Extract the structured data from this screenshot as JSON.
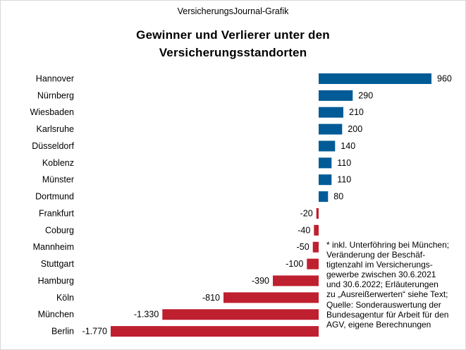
{
  "chart_data": {
    "type": "bar",
    "orientation": "horizontal",
    "source_label": "VersicherungsJournal-Grafik",
    "title": "Gewinner und Verlierer unter den Versicherungsstandorten",
    "title_lines": [
      "Gewinner und Verlierer unter den",
      "Versicherungsstandorten"
    ],
    "categories": [
      "Hannover",
      "Nürnberg",
      "Wiesbaden",
      "Karlsruhe",
      "Düsseldorf",
      "Koblenz",
      "Münster",
      "Dortmund",
      "Frankfurt",
      "Coburg",
      "Mannheim",
      "Stuttgart",
      "Hamburg",
      "Köln",
      "München",
      "Berlin"
    ],
    "values": [
      960,
      290,
      210,
      200,
      140,
      110,
      110,
      80,
      -20,
      -40,
      -50,
      -100,
      -390,
      -810,
      -1330,
      -1770
    ],
    "value_labels": [
      "960",
      "290",
      "210",
      "200",
      "140",
      "110",
      "110",
      "80",
      "-20",
      "-40",
      "-50",
      "-100",
      "-390",
      "-810",
      "-1.330",
      "-1.770"
    ],
    "positive_color": "#005b96",
    "negative_color": "#bf202f",
    "xlim": [
      -1800,
      1000
    ],
    "grid": false,
    "note_lines": [
      "* inkl. Unterföhring bei München;",
      "Veränderung der Beschäf-",
      "tigtenzahl im Versicherungs-",
      "gewerbe zwischen 30.6.2021",
      "und 30.6.2022; Erläuterungen",
      "zu „Ausreißerwerten“ siehe Text;",
      "Quelle: Sonderauswertung der",
      "Bundesagentur für Arbeit für den",
      "AGV, eigene Berechnungen"
    ]
  }
}
